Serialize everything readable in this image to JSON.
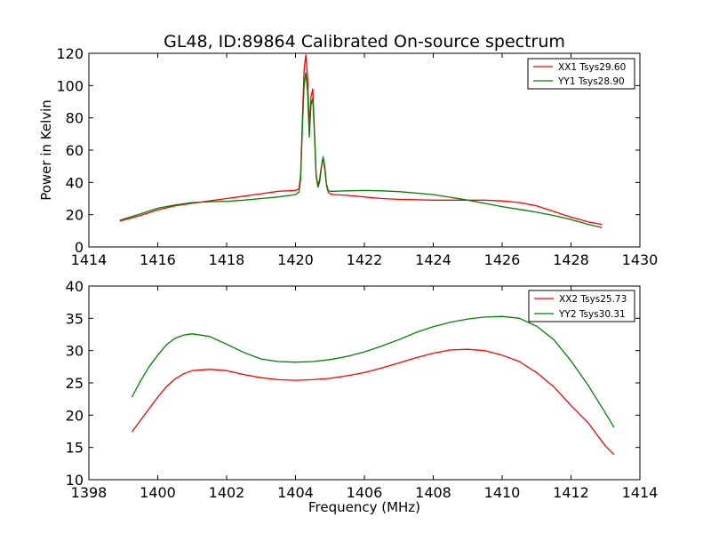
{
  "title": "GL48, ID:89864 Calibrated On-source spectrum",
  "colors": {
    "xx": "#ff0000",
    "yy": "#008000"
  },
  "chart_data": [
    {
      "type": "line",
      "title": "GL48, ID:89864 Calibrated On-source spectrum",
      "xlabel": "",
      "ylabel": "Power in Kelvin",
      "xlim": [
        1414,
        1430
      ],
      "ylim": [
        0,
        120
      ],
      "xticks": [
        1414,
        1416,
        1418,
        1420,
        1422,
        1424,
        1426,
        1428,
        1430
      ],
      "yticks": [
        0,
        20,
        40,
        60,
        80,
        100,
        120
      ],
      "xtick_labels": [
        "1414",
        "1416",
        "1418",
        "1420",
        "1422",
        "1424",
        "1426",
        "1428",
        "1430"
      ],
      "ytick_labels": [
        "0",
        "20",
        "40",
        "60",
        "80",
        "100",
        "120"
      ],
      "grid": false,
      "legend_position": "top-right",
      "series": [
        {
          "name": "XX1 Tsys29.60",
          "color": "#ff0000",
          "x": [
            1414.9,
            1415.5,
            1416.0,
            1416.5,
            1417.0,
            1417.5,
            1418.0,
            1418.5,
            1419.0,
            1419.5,
            1420.0,
            1420.1,
            1420.15,
            1420.2,
            1420.25,
            1420.3,
            1420.35,
            1420.4,
            1420.45,
            1420.5,
            1420.55,
            1420.6,
            1420.65,
            1420.7,
            1420.75,
            1420.8,
            1420.85,
            1420.9,
            1420.95,
            1421.0,
            1421.1,
            1421.5,
            1422.0,
            1422.5,
            1423.0,
            1424.0,
            1425.0,
            1425.5,
            1426.0,
            1426.5,
            1427.0,
            1427.5,
            1428.0,
            1428.5,
            1428.9
          ],
          "y": [
            16,
            19.5,
            23,
            25.5,
            27,
            28.5,
            30,
            31.5,
            33,
            34.5,
            35,
            36,
            45,
            80,
            110,
            119,
            105,
            75,
            93,
            98,
            72,
            45,
            38,
            42,
            50,
            55,
            48,
            38,
            34,
            33,
            32.5,
            32,
            31,
            30,
            29.5,
            29,
            29,
            29,
            28.5,
            27.5,
            25.5,
            22,
            18.5,
            15.5,
            14
          ]
        },
        {
          "name": "YY1 Tsys28.90",
          "color": "#008000",
          "x": [
            1414.9,
            1415.5,
            1416.0,
            1416.5,
            1417.0,
            1417.5,
            1418.0,
            1418.5,
            1419.0,
            1419.5,
            1420.0,
            1420.1,
            1420.15,
            1420.2,
            1420.25,
            1420.3,
            1420.35,
            1420.4,
            1420.45,
            1420.5,
            1420.55,
            1420.6,
            1420.65,
            1420.7,
            1420.75,
            1420.8,
            1420.85,
            1420.9,
            1420.95,
            1421.0,
            1421.1,
            1421.5,
            1422.0,
            1422.5,
            1423.0,
            1424.0,
            1425.0,
            1425.5,
            1426.0,
            1426.5,
            1427.0,
            1427.5,
            1428.0,
            1428.5,
            1428.9
          ],
          "y": [
            16.5,
            20.5,
            24,
            26,
            27.5,
            28,
            28.3,
            29,
            30,
            31,
            32.5,
            34,
            42,
            75,
            100,
            108,
            96,
            68,
            88,
            92,
            70,
            44,
            37,
            40,
            49,
            56,
            50,
            39,
            35,
            34.5,
            34.5,
            34.8,
            35,
            34.8,
            34.3,
            32.5,
            29,
            27,
            25,
            23.3,
            21.5,
            19.5,
            17,
            14,
            12
          ]
        }
      ]
    },
    {
      "type": "line",
      "title": "",
      "xlabel": "Frequency (MHz)",
      "ylabel": "",
      "xlim": [
        1398,
        1414
      ],
      "ylim": [
        10,
        40
      ],
      "xticks": [
        1398,
        1400,
        1402,
        1404,
        1406,
        1408,
        1410,
        1412,
        1414
      ],
      "yticks": [
        10,
        15,
        20,
        25,
        30,
        35,
        40
      ],
      "xtick_labels": [
        "1398",
        "1400",
        "1402",
        "1404",
        "1406",
        "1408",
        "1410",
        "1412",
        "1414"
      ],
      "ytick_labels": [
        "10",
        "15",
        "20",
        "25",
        "30",
        "35",
        "40"
      ],
      "grid": false,
      "legend_position": "top-right",
      "series": [
        {
          "name": "XX2 Tsys25.73",
          "color": "#ff0000",
          "x": [
            1399.25,
            1399.5,
            1399.75,
            1400.0,
            1400.25,
            1400.5,
            1400.75,
            1401.0,
            1401.5,
            1402.0,
            1402.5,
            1403.0,
            1403.5,
            1404.0,
            1404.5,
            1405.0,
            1405.5,
            1406.0,
            1406.5,
            1407.0,
            1407.5,
            1408.0,
            1408.5,
            1409.0,
            1409.5,
            1410.0,
            1410.5,
            1411.0,
            1411.5,
            1412.0,
            1412.5,
            1413.0,
            1413.25
          ],
          "y": [
            17.4,
            19.2,
            21.0,
            22.8,
            24.4,
            25.6,
            26.4,
            26.9,
            27.1,
            26.9,
            26.3,
            25.8,
            25.5,
            25.4,
            25.5,
            25.7,
            26.1,
            26.6,
            27.3,
            28.1,
            28.9,
            29.6,
            30.1,
            30.2,
            30.0,
            29.3,
            28.3,
            26.6,
            24.4,
            21.5,
            18.8,
            15.2,
            13.9
          ]
        },
        {
          "name": "YY2 Tsys30.31",
          "color": "#008000",
          "x": [
            1399.25,
            1399.5,
            1399.75,
            1400.0,
            1400.25,
            1400.5,
            1400.75,
            1401.0,
            1401.5,
            1402.0,
            1402.5,
            1403.0,
            1403.5,
            1404.0,
            1404.5,
            1405.0,
            1405.5,
            1406.0,
            1406.5,
            1407.0,
            1407.5,
            1408.0,
            1408.5,
            1409.0,
            1409.5,
            1410.0,
            1410.5,
            1411.0,
            1411.5,
            1412.0,
            1412.5,
            1413.0,
            1413.25
          ],
          "y": [
            22.8,
            25.3,
            27.5,
            29.3,
            30.9,
            31.9,
            32.4,
            32.6,
            32.2,
            31.0,
            29.7,
            28.7,
            28.3,
            28.2,
            28.3,
            28.6,
            29.1,
            29.8,
            30.7,
            31.7,
            32.8,
            33.7,
            34.4,
            34.9,
            35.2,
            35.3,
            35.0,
            33.8,
            31.7,
            28.4,
            24.6,
            20.3,
            18.1
          ]
        }
      ]
    }
  ]
}
